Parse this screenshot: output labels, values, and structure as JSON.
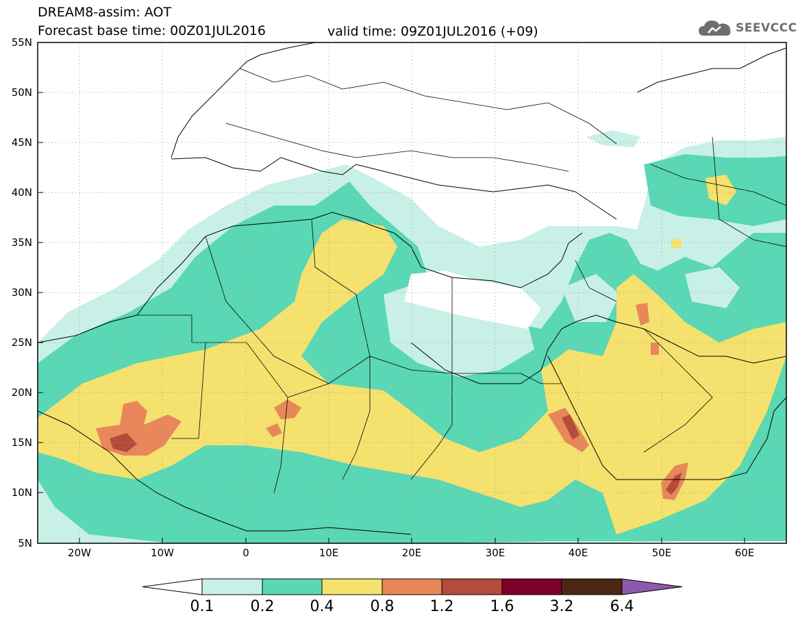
{
  "header": {
    "title": "DREAM8-assim: AOT",
    "base_time": "Forecast base time: 00Z01JUL2016",
    "valid_time": "valid time: 09Z01JUL2016 (+09)"
  },
  "brand": {
    "name": "SEEVCCC",
    "icon": "cloud-logo-icon"
  },
  "map": {
    "lat_labels": [
      "55N",
      "50N",
      "45N",
      "40N",
      "35N",
      "30N",
      "25N",
      "20N",
      "15N",
      "10N",
      "5N"
    ],
    "lon_labels": [
      "20W",
      "10W",
      "0",
      "10E",
      "20E",
      "30E",
      "40E",
      "50E",
      "60E"
    ],
    "lon_range": [
      -25,
      65
    ],
    "lat_range": [
      5,
      55
    ],
    "grid": "dotted"
  },
  "colorbar": {
    "labels": [
      "0.1",
      "0.2",
      "0.4",
      "0.8",
      "1.2",
      "1.6",
      "3.2",
      "6.4"
    ],
    "colors": [
      "#ffffff",
      "#c8f0e6",
      "#5ad7b4",
      "#f5e16e",
      "#e8875a",
      "#b44b3c",
      "#7d0028",
      "#4b2814",
      "#8c5aaa"
    ]
  }
}
